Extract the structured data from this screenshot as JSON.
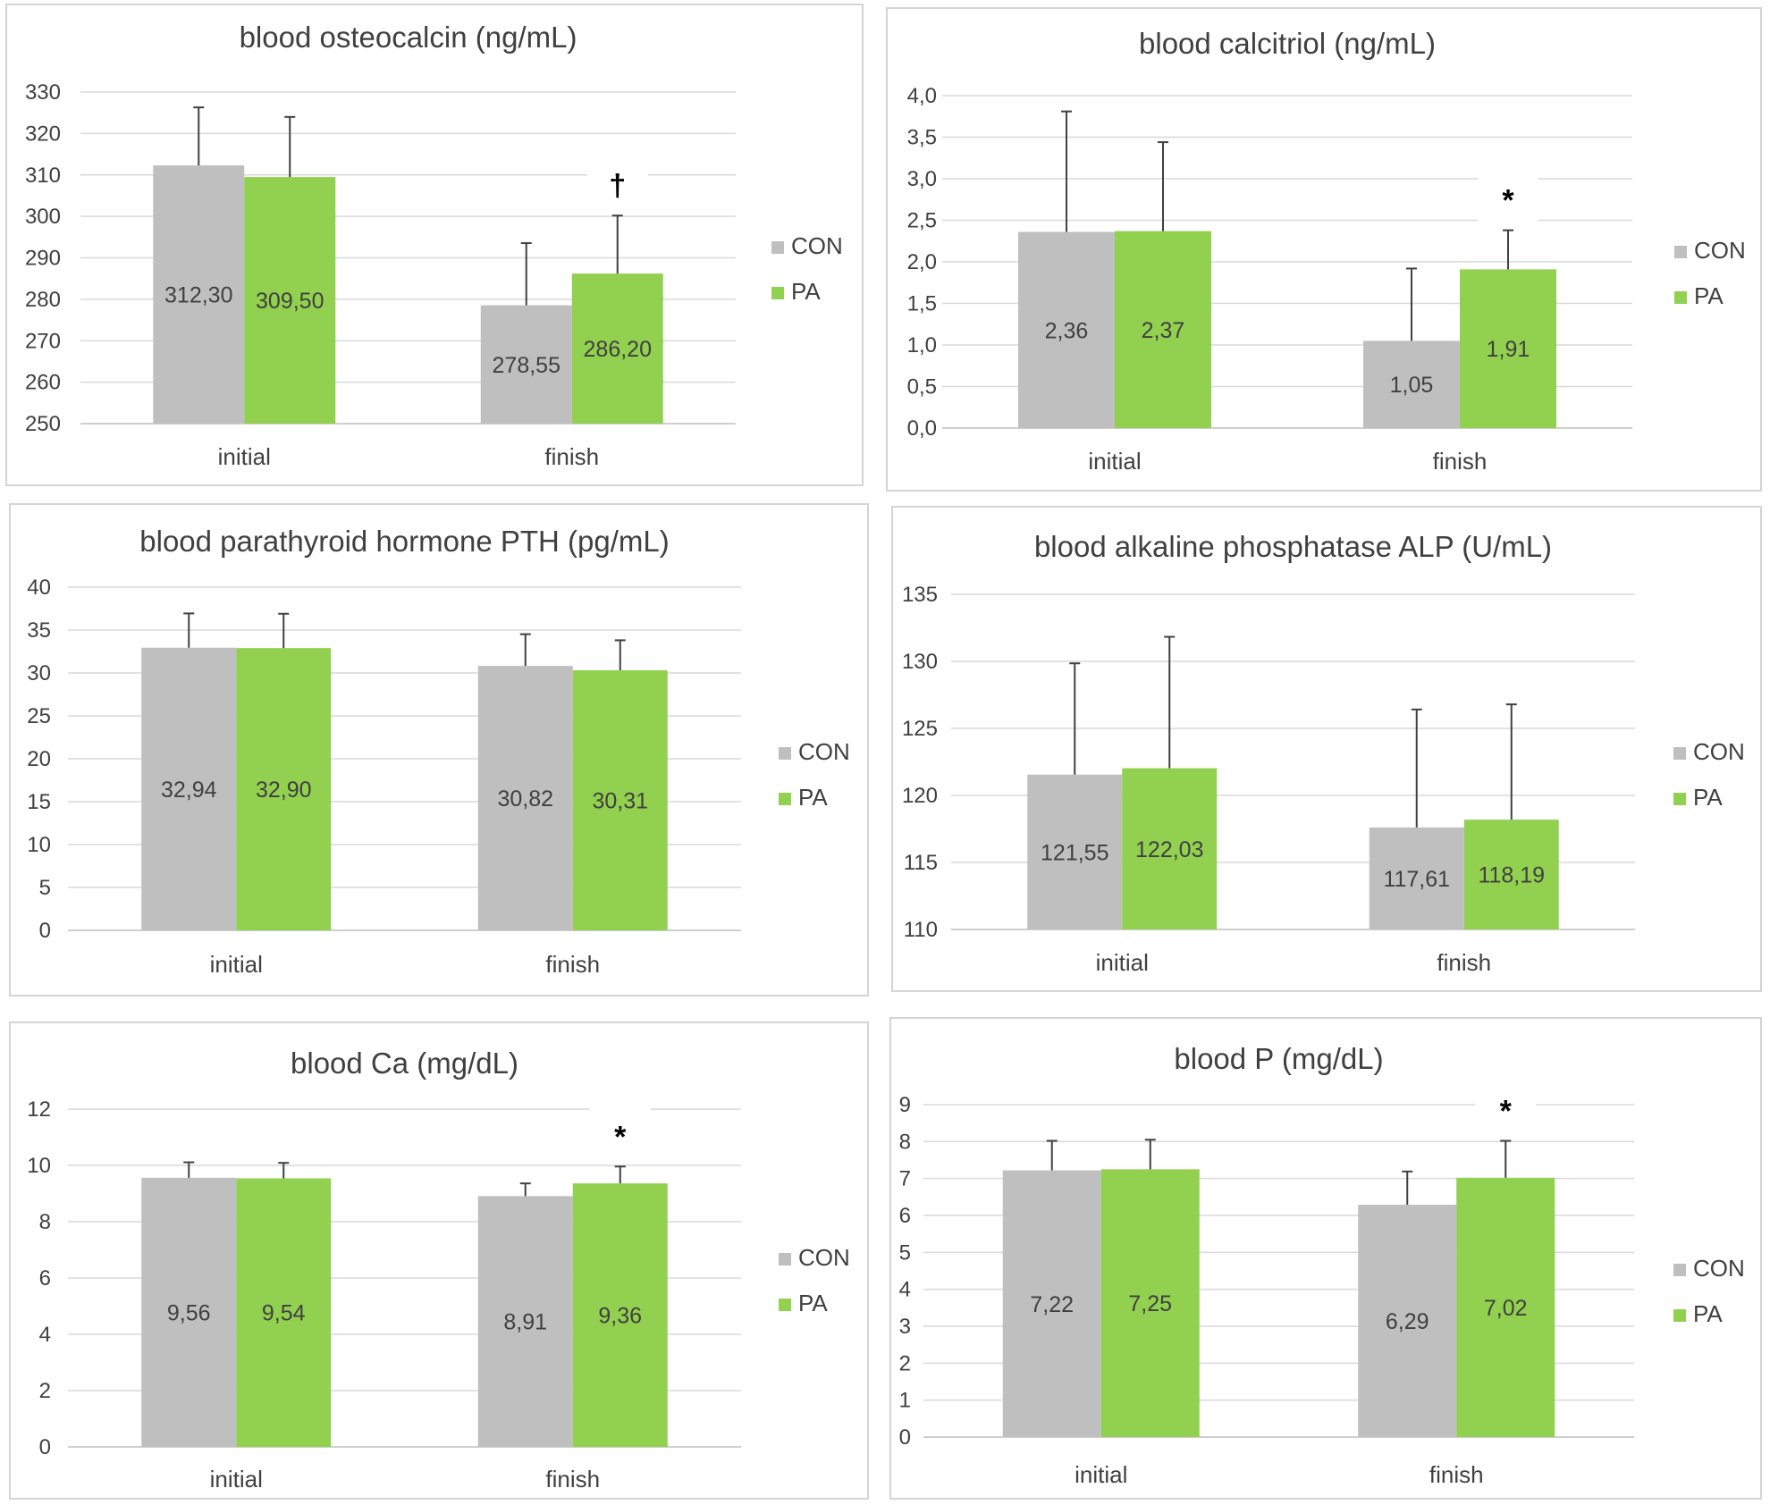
{
  "legend": [
    "CON",
    "PA"
  ],
  "colors": {
    "CON": "#bfbfbf",
    "PA": "#92d050",
    "grid": "#d9d9d9",
    "axis": "#bfbfbf",
    "error": "#404040"
  },
  "chart_data": [
    {
      "type": "bar",
      "title": "blood  osteocalcin (ng/mL)",
      "categories": [
        "initial",
        "finish"
      ],
      "series": [
        {
          "name": "CON",
          "values": [
            312.3,
            278.55
          ],
          "labels": [
            "312,30",
            "278,55"
          ],
          "errors": [
            14,
            15
          ]
        },
        {
          "name": "PA",
          "values": [
            309.5,
            286.2
          ],
          "labels": [
            "309,50",
            "286,20"
          ],
          "errors": [
            14.5,
            14
          ]
        }
      ],
      "ylim": [
        250,
        330
      ],
      "yticks": [
        250,
        260,
        270,
        280,
        290,
        300,
        310,
        320,
        330
      ],
      "ytick_labels": [
        "250",
        "260",
        "270",
        "280",
        "290",
        "300",
        "310",
        "320",
        "330"
      ],
      "annotations": [
        {
          "category": "finish",
          "series": "PA",
          "text": "†"
        }
      ],
      "legend_position": "right"
    },
    {
      "type": "bar",
      "title": "blood calcitriol (ng/mL)",
      "categories": [
        "initial",
        "finish"
      ],
      "series": [
        {
          "name": "CON",
          "values": [
            2.36,
            1.05
          ],
          "labels": [
            "2,36",
            "1,05"
          ],
          "errors": [
            1.45,
            0.87
          ]
        },
        {
          "name": "PA",
          "values": [
            2.37,
            1.91
          ],
          "labels": [
            "2,37",
            "1,91"
          ],
          "errors": [
            1.07,
            0.47
          ]
        }
      ],
      "ylim": [
        0,
        4
      ],
      "yticks": [
        0,
        0.5,
        1,
        1.5,
        2,
        2.5,
        3,
        3.5,
        4
      ],
      "ytick_labels": [
        "0,0",
        "0,5",
        "1,0",
        "1,5",
        "2,0",
        "2,5",
        "3,0",
        "3,5",
        "4,0"
      ],
      "annotations": [
        {
          "category": "finish",
          "series": "PA",
          "text": "*"
        }
      ],
      "legend_position": "right"
    },
    {
      "type": "bar",
      "title": "blood  parathyroid hormone PTH (pg/mL)",
      "categories": [
        "initial",
        "finish"
      ],
      "series": [
        {
          "name": "CON",
          "values": [
            32.94,
            30.82
          ],
          "labels": [
            "32,94",
            "30,82"
          ],
          "errors": [
            4,
            3.7
          ]
        },
        {
          "name": "PA",
          "values": [
            32.9,
            30.31
          ],
          "labels": [
            "32,90",
            "30,31"
          ],
          "errors": [
            4,
            3.5
          ]
        }
      ],
      "ylim": [
        0,
        40
      ],
      "yticks": [
        0,
        5,
        10,
        15,
        20,
        25,
        30,
        35,
        40
      ],
      "ytick_labels": [
        "0",
        "5",
        "10",
        "15",
        "20",
        "25",
        "30",
        "35",
        "40"
      ],
      "annotations": [],
      "legend_position": "right"
    },
    {
      "type": "bar",
      "title": "blood alkaline phosphatase ALP (U/mL)",
      "categories": [
        "initial",
        "finish"
      ],
      "series": [
        {
          "name": "CON",
          "values": [
            121.55,
            117.61
          ],
          "labels": [
            "121,55",
            "117,61"
          ],
          "errors": [
            8.3,
            8.8
          ]
        },
        {
          "name": "PA",
          "values": [
            122.03,
            118.19
          ],
          "labels": [
            "122,03",
            "118,19"
          ],
          "errors": [
            9.8,
            8.6
          ]
        }
      ],
      "ylim": [
        110,
        135
      ],
      "yticks": [
        110,
        115,
        120,
        125,
        130,
        135
      ],
      "ytick_labels": [
        "110",
        "115",
        "120",
        "125",
        "130",
        "135"
      ],
      "annotations": [],
      "legend_position": "right"
    },
    {
      "type": "bar",
      "title": "blood Ca (mg/dL)",
      "categories": [
        "initial",
        "finish"
      ],
      "series": [
        {
          "name": "CON",
          "values": [
            9.56,
            8.91
          ],
          "labels": [
            "9,56",
            "8,91"
          ],
          "errors": [
            0.55,
            0.45
          ]
        },
        {
          "name": "PA",
          "values": [
            9.54,
            9.36
          ],
          "labels": [
            "9,54",
            "9,36"
          ],
          "errors": [
            0.55,
            0.6
          ]
        }
      ],
      "ylim": [
        0,
        12
      ],
      "yticks": [
        0,
        2,
        4,
        6,
        8,
        10,
        12
      ],
      "ytick_labels": [
        "0",
        "2",
        "4",
        "6",
        "8",
        "10",
        "12"
      ],
      "annotations": [
        {
          "category": "finish",
          "series": "PA",
          "text": "*"
        }
      ],
      "legend_position": "right"
    },
    {
      "type": "bar",
      "title": "blood P (mg/dL)",
      "categories": [
        "initial",
        "finish"
      ],
      "series": [
        {
          "name": "CON",
          "values": [
            7.22,
            6.29
          ],
          "labels": [
            "7,22",
            "6,29"
          ],
          "errors": [
            0.8,
            0.9
          ]
        },
        {
          "name": "PA",
          "values": [
            7.25,
            7.02
          ],
          "labels": [
            "7,25",
            "7,02"
          ],
          "errors": [
            0.8,
            1.0
          ]
        }
      ],
      "ylim": [
        0,
        9
      ],
      "yticks": [
        0,
        1,
        2,
        3,
        4,
        5,
        6,
        7,
        8,
        9
      ],
      "ytick_labels": [
        "0",
        "1",
        "2",
        "3",
        "4",
        "5",
        "6",
        "7",
        "8",
        "9"
      ],
      "annotations": [
        {
          "category": "finish",
          "series": "PA",
          "text": "*"
        }
      ],
      "legend_position": "right"
    }
  ]
}
